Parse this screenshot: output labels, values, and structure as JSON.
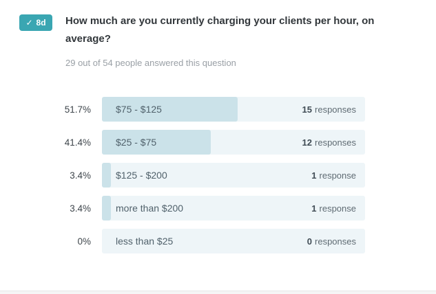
{
  "badge": {
    "icon": "checkmark",
    "check_glyph": "✓",
    "label": "8d",
    "color": "#3aa6b2"
  },
  "question": {
    "title": "How much are you currently charging your clients per hour, on average?",
    "answered_text": "29 out of 54 people answered this question"
  },
  "results": {
    "rows": [
      {
        "percent": "51.7%",
        "label": "$75 - $125",
        "count": "15",
        "count_word": "responses",
        "bar_pct": 51.7
      },
      {
        "percent": "41.4%",
        "label": "$25 - $75",
        "count": "12",
        "count_word": "responses",
        "bar_pct": 41.4
      },
      {
        "percent": "3.4%",
        "label": "$125 - $200",
        "count": "1",
        "count_word": "response",
        "bar_pct": 3.4
      },
      {
        "percent": "3.4%",
        "label": "more than $200",
        "count": "1",
        "count_word": "response",
        "bar_pct": 3.4
      },
      {
        "percent": "0%",
        "label": "less than $25",
        "count": "0",
        "count_word": "responses",
        "bar_pct": 0
      }
    ]
  },
  "colors": {
    "badge": "#3aa6b2",
    "bar_fill": "#cbe2e9",
    "bar_track": "#eef5f8",
    "title_text": "#32373b",
    "subtitle_text": "#999fa5"
  },
  "chart_data": {
    "type": "bar",
    "orientation": "horizontal",
    "title": "How much are you currently charging your clients per hour, on average?",
    "subtitle": "29 out of 54 people answered this question",
    "categories": [
      "$75 - $125",
      "$25 - $75",
      "$125 - $200",
      "more than $200",
      "less than $25"
    ],
    "values": [
      15,
      12,
      1,
      1,
      0
    ],
    "percentages": [
      51.7,
      41.4,
      3.4,
      3.4,
      0
    ],
    "total_answered": 29,
    "total_people": 54,
    "xlim": [
      0,
      100
    ],
    "legend": "none",
    "grid": "off"
  }
}
